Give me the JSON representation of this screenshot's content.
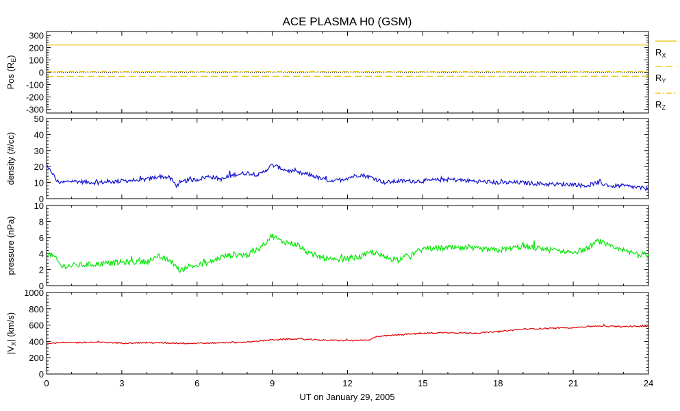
{
  "title": "ACE PLASMA H0 (GSM)",
  "xlabel": "UT on January 29, 2005",
  "colors": {
    "rx": "#e8c000",
    "ry": "#e8c000",
    "rz": "#e8c000",
    "density": "#1010d0",
    "pressure": "#00e800",
    "vx": "#e00000",
    "axis": "#000000"
  },
  "chart_data": [
    {
      "type": "line",
      "ylabel_main": "Pos (R",
      "ylabel_sub": "E",
      "ylabel_tail": ")",
      "ylim": [
        -330,
        330
      ],
      "yticks": [
        "300",
        "200",
        "100",
        "0",
        "-100",
        "-200",
        "-300"
      ],
      "ytick_values": [
        300,
        200,
        100,
        0,
        -100,
        -200,
        -300
      ],
      "xlim": [
        0,
        24
      ],
      "legend_placement": "right",
      "series": [
        {
          "name": "R_X",
          "label_main": "R",
          "label_sub": "X",
          "style": "solid",
          "x": [
            0,
            24
          ],
          "values": [
            221,
            221
          ]
        },
        {
          "name": "R_Y",
          "label_main": "R",
          "label_sub": "Y",
          "style": "dashed",
          "x": [
            0,
            24
          ],
          "values": [
            -33,
            -32
          ]
        },
        {
          "name": "R_Z",
          "label_main": "R",
          "label_sub": "Z",
          "style": "dashdot",
          "x": [
            0,
            24
          ],
          "values": [
            5,
            5
          ]
        }
      ],
      "zero_line": 0
    },
    {
      "type": "line",
      "ylabel": "density (#/cc)",
      "ylim": [
        0,
        50
      ],
      "yticks": [
        "50",
        "40",
        "30",
        "20",
        "10",
        "0"
      ],
      "ytick_values": [
        50,
        40,
        30,
        20,
        10,
        0
      ],
      "xlim": [
        0,
        24
      ],
      "series": [
        {
          "x": [
            0,
            0.2,
            0.4,
            0.6,
            1,
            2,
            3,
            4,
            4.5,
            4.9,
            5.2,
            5.5,
            6,
            6.5,
            7,
            7.5,
            8,
            8.5,
            9,
            9.5,
            10,
            10.5,
            11,
            11.5,
            12,
            12.5,
            13,
            13.5,
            14,
            15,
            16,
            17,
            18,
            19,
            20,
            21,
            21.5,
            22,
            22.5,
            23,
            23.5,
            24
          ],
          "values": [
            19,
            17,
            11,
            10,
            11,
            10,
            11,
            12,
            14,
            13,
            8,
            11,
            12,
            14,
            12,
            15,
            16,
            15,
            21,
            18,
            16,
            15,
            12,
            11,
            13,
            15,
            13,
            10,
            11,
            11,
            12,
            11,
            10,
            10,
            9,
            9,
            8,
            10,
            8,
            8,
            7,
            6
          ]
        }
      ]
    },
    {
      "type": "line",
      "ylabel": "pressure (nPa)",
      "ylim": [
        0,
        10
      ],
      "yticks": [
        "10",
        "8",
        "6",
        "4",
        "2",
        "0"
      ],
      "ytick_values": [
        10,
        8,
        6,
        4,
        2,
        0
      ],
      "xlim": [
        0,
        24
      ],
      "series": [
        {
          "x": [
            0,
            0.3,
            0.6,
            1,
            2,
            3,
            4,
            4.5,
            5,
            5.3,
            5.6,
            6,
            6.5,
            7,
            7.5,
            8,
            8.5,
            9,
            9.3,
            10,
            10.5,
            11,
            11.5,
            12,
            12.5,
            13,
            13.5,
            14,
            14.5,
            15,
            16,
            17,
            18,
            19,
            20,
            21,
            21.5,
            22,
            22.5,
            23,
            23.5,
            24
          ],
          "values": [
            4.1,
            3.6,
            2.4,
            2.5,
            2.7,
            2.9,
            3.0,
            3.6,
            3.0,
            1.8,
            2.4,
            2.5,
            2.9,
            3.6,
            3.9,
            3.8,
            4.6,
            6.3,
            5.6,
            5.1,
            3.9,
            3.5,
            3.1,
            3.4,
            3.6,
            4.2,
            3.5,
            3.3,
            3.8,
            4.6,
            4.7,
            4.6,
            4.4,
            4.9,
            4.5,
            4.2,
            4.5,
            5.6,
            4.8,
            4.3,
            4.0,
            3.8
          ]
        }
      ]
    },
    {
      "type": "line",
      "ylabel_main": "|V",
      "ylabel_sub": "X",
      "ylabel_tail": "| (km/s)",
      "ylim": [
        0,
        1000
      ],
      "yticks": [
        "1000",
        "800",
        "600",
        "400",
        "200",
        "0"
      ],
      "ytick_values": [
        1000,
        800,
        600,
        400,
        200,
        0
      ],
      "xlim": [
        0,
        24
      ],
      "xticks": [
        "0",
        "3",
        "6",
        "9",
        "12",
        "15",
        "18",
        "21",
        "24"
      ],
      "xtick_values": [
        0,
        3,
        6,
        9,
        12,
        15,
        18,
        21,
        24
      ],
      "series": [
        {
          "x": [
            0,
            1,
            2,
            3,
            4,
            5,
            6,
            7,
            8,
            9,
            10,
            11,
            12,
            12.9,
            13.1,
            14,
            15,
            16,
            17,
            18,
            19,
            20,
            21,
            22,
            23,
            24
          ],
          "values": [
            380,
            385,
            390,
            380,
            385,
            380,
            375,
            385,
            390,
            420,
            430,
            415,
            410,
            415,
            460,
            480,
            500,
            510,
            500,
            520,
            550,
            560,
            570,
            590,
            580,
            590
          ]
        }
      ]
    }
  ]
}
